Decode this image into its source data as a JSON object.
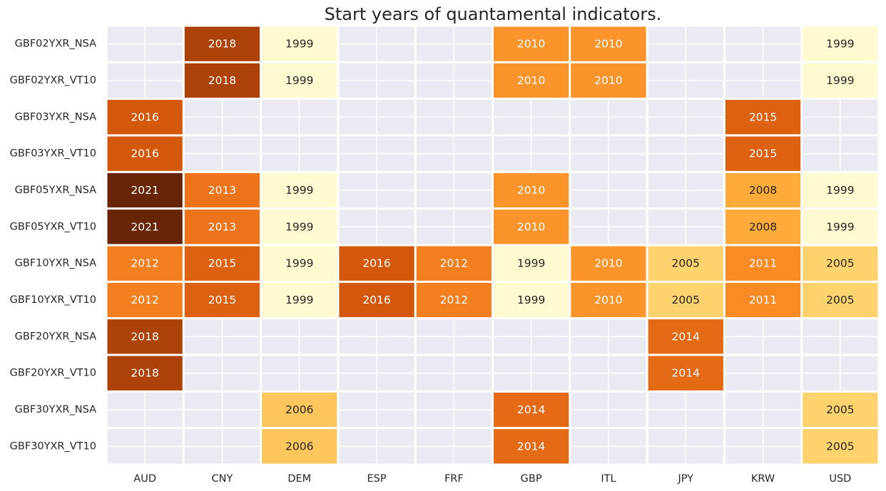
{
  "chart_data": {
    "type": "heatmap",
    "title": "Start years of quantamental indicators.",
    "xlabel": "",
    "ylabel": "",
    "colorbar": false,
    "x_categories": [
      "AUD",
      "CNY",
      "DEM",
      "ESP",
      "FRF",
      "GBP",
      "ITL",
      "JPY",
      "KRW",
      "USD"
    ],
    "y_categories": [
      "GBF02YXR_NSA",
      "GBF02YXR_VT10",
      "GBF03YXR_NSA",
      "GBF03YXR_VT10",
      "GBF05YXR_NSA",
      "GBF05YXR_VT10",
      "GBF10YXR_NSA",
      "GBF10YXR_VT10",
      "GBF20YXR_NSA",
      "GBF20YXR_VT10",
      "GBF30YXR_NSA",
      "GBF30YXR_VT10"
    ],
    "values": [
      [
        null,
        2018,
        1999,
        null,
        null,
        2010,
        2010,
        null,
        null,
        1999
      ],
      [
        null,
        2018,
        1999,
        null,
        null,
        2010,
        2010,
        null,
        null,
        1999
      ],
      [
        2016,
        null,
        null,
        null,
        null,
        null,
        null,
        null,
        2015,
        null
      ],
      [
        2016,
        null,
        null,
        null,
        null,
        null,
        null,
        null,
        2015,
        null
      ],
      [
        2021,
        2013,
        1999,
        null,
        null,
        2010,
        null,
        null,
        2008,
        1999
      ],
      [
        2021,
        2013,
        1999,
        null,
        null,
        2010,
        null,
        null,
        2008,
        1999
      ],
      [
        2012,
        2015,
        1999,
        2016,
        2012,
        1999,
        2010,
        2005,
        2011,
        2005
      ],
      [
        2012,
        2015,
        1999,
        2016,
        2012,
        1999,
        2010,
        2005,
        2011,
        2005
      ],
      [
        2018,
        null,
        null,
        null,
        null,
        null,
        null,
        2014,
        null,
        null
      ],
      [
        2018,
        null,
        null,
        null,
        null,
        null,
        null,
        2014,
        null,
        null
      ],
      [
        null,
        null,
        2006,
        null,
        null,
        2014,
        null,
        null,
        null,
        2005
      ],
      [
        null,
        null,
        2006,
        null,
        null,
        2014,
        null,
        null,
        null,
        2005
      ]
    ],
    "colormap": "YlOrBr",
    "value_range": [
      1999,
      2021
    ],
    "colors": {
      "background": "#eaeaf2",
      "grid": "#ffffff",
      "label_light": "#ffffff",
      "label_dark": "#262626"
    }
  }
}
